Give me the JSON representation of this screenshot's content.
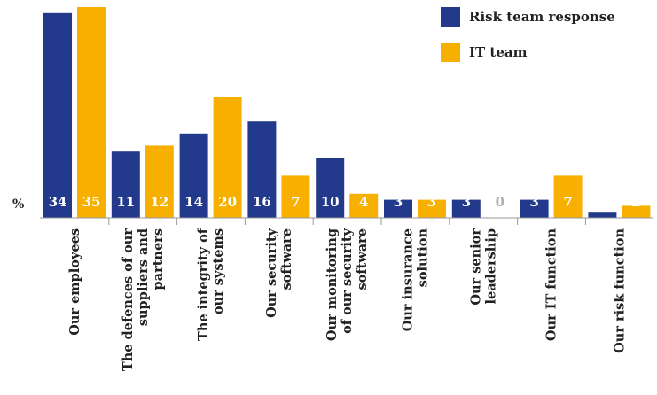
{
  "chart_data": {
    "type": "bar",
    "unit_label": "%",
    "categories": [
      [
        "Our employees"
      ],
      [
        "The defences of our",
        "suppliers and",
        "partners"
      ],
      [
        "The integrity of",
        "our systems"
      ],
      [
        "Our security",
        "software"
      ],
      [
        "Our monitoring",
        "of our security",
        "software"
      ],
      [
        "Our insurance",
        "solution"
      ],
      [
        "Our senior",
        "leadership"
      ],
      [
        "Our IT function"
      ],
      [
        "Our risk function"
      ]
    ],
    "series": [
      {
        "name": "Risk team response",
        "color": "#233a8c",
        "values": [
          34,
          11,
          14,
          16,
          10,
          3,
          3,
          3,
          1
        ]
      },
      {
        "name": "IT team",
        "color": "#f7b000",
        "values": [
          35,
          12,
          20,
          7,
          4,
          3,
          0,
          7,
          2
        ]
      }
    ],
    "zero_label_color": "#b0b0b0",
    "grid": false,
    "legend_position": "top-right"
  }
}
